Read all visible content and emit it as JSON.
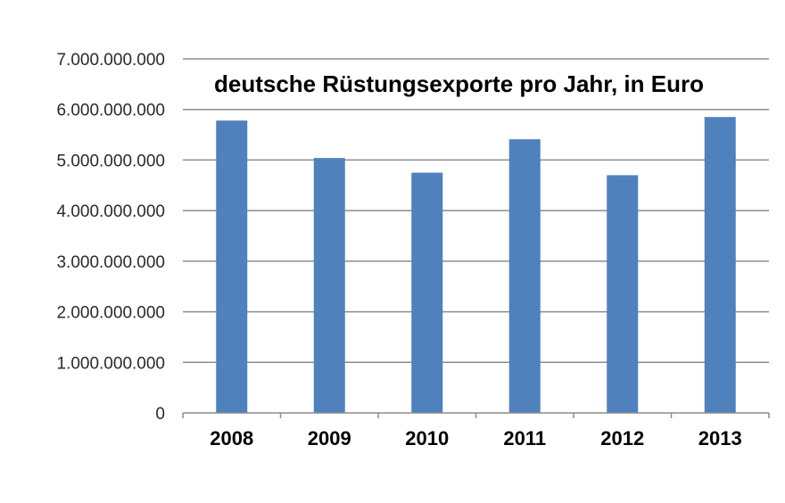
{
  "chart_data": {
    "type": "bar",
    "title": "deutsche Rüstungsexporte pro Jahr, in Euro",
    "categories": [
      "2008",
      "2009",
      "2010",
      "2011",
      "2012",
      "2013"
    ],
    "values": [
      5780000000,
      5040000000,
      4750000000,
      5410000000,
      4700000000,
      5850000000
    ],
    "ylim": [
      0,
      7000000000
    ],
    "yticks": [
      0,
      1000000000,
      2000000000,
      3000000000,
      4000000000,
      5000000000,
      6000000000,
      7000000000
    ],
    "ytick_labels": [
      "0",
      "1.000.000.000",
      "2.000.000.000",
      "3.000.000.000",
      "4.000.000.000",
      "5.000.000.000",
      "6.000.000.000",
      "7.000.000.000"
    ],
    "grid": true,
    "legend": "none",
    "bar_color": "#4f81bd",
    "grid_color": "#8c8c8c",
    "axis_color": "#8c8c8c"
  }
}
